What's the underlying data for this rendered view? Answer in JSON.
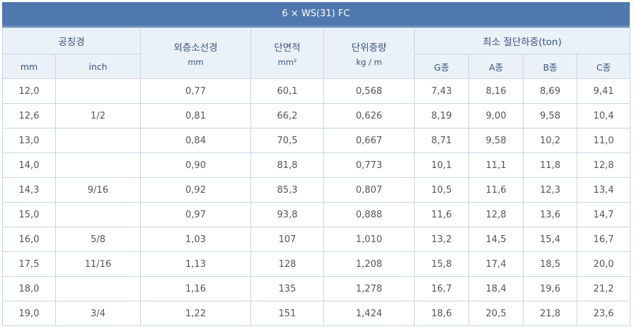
{
  "title": "6 × WS(31) FC",
  "header": {
    "nominal_diameter": "공칭경",
    "mm": "mm",
    "inch": "inch",
    "outer_wire_diameter": "외층소선경",
    "outer_wire_unit": "mm",
    "cross_section": "단면적",
    "cross_section_unit": "mm²",
    "unit_weight": "단위중량",
    "unit_weight_unit": "kg / m",
    "min_breaking_load": "최소 절단하중(ton)",
    "grades": [
      "G종",
      "A종",
      "B종",
      "C종"
    ]
  },
  "rows": [
    {
      "mm": "12,0",
      "inch": "",
      "wire": "0,77",
      "area": "60,1",
      "weight": "0,568",
      "g": "7,43",
      "a": "8,16",
      "b": "8,69",
      "c": "9,41"
    },
    {
      "mm": "12,6",
      "inch": "1/2",
      "wire": "0,81",
      "area": "66,2",
      "weight": "0,626",
      "g": "8,19",
      "a": "9,00",
      "b": "9,58",
      "c": "10,4"
    },
    {
      "mm": "13,0",
      "inch": "",
      "wire": "0,84",
      "area": "70,5",
      "weight": "0,667",
      "g": "8,71",
      "a": "9,58",
      "b": "10,2",
      "c": "11,0"
    },
    {
      "mm": "14,0",
      "inch": "",
      "wire": "0,90",
      "area": "81,8",
      "weight": "0,773",
      "g": "10,1",
      "a": "11,1",
      "b": "11,8",
      "c": "12,8"
    },
    {
      "mm": "14,3",
      "inch": "9/16",
      "wire": "0,92",
      "area": "85,3",
      "weight": "0,807",
      "g": "10,5",
      "a": "11,6",
      "b": "12,3",
      "c": "13,4"
    },
    {
      "mm": "15,0",
      "inch": "",
      "wire": "0,97",
      "area": "93,8",
      "weight": "0,888",
      "g": "11,6",
      "a": "12,8",
      "b": "13,6",
      "c": "14,7"
    },
    {
      "mm": "16,0",
      "inch": "5/8",
      "wire": "1,03",
      "area": "107",
      "weight": "1,010",
      "g": "13,2",
      "a": "14,5",
      "b": "15,4",
      "c": "16,7"
    },
    {
      "mm": "17,5",
      "inch": "11/16",
      "wire": "1,13",
      "area": "128",
      "weight": "1,208",
      "g": "15,8",
      "a": "17,4",
      "b": "18,5",
      "c": "20,0"
    },
    {
      "mm": "18,0",
      "inch": "",
      "wire": "1,16",
      "area": "135",
      "weight": "1,278",
      "g": "16,7",
      "a": "18,4",
      "b": "19,6",
      "c": "21,2"
    },
    {
      "mm": "19,0",
      "inch": "3/4",
      "wire": "1,22",
      "area": "151",
      "weight": "1,424",
      "g": "18,6",
      "a": "20,5",
      "b": "21,8",
      "c": "23,6"
    }
  ]
}
